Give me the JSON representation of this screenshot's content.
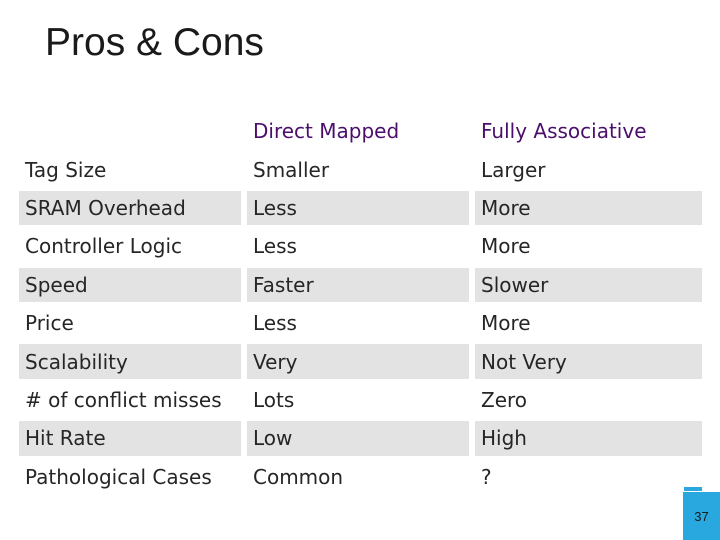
{
  "title": "Pros & Cons",
  "table": {
    "headers": [
      "",
      "Direct Mapped",
      "Fully Associative"
    ],
    "rows": [
      [
        "Tag Size",
        "Smaller",
        "Larger"
      ],
      [
        "SRAM Overhead",
        "Less",
        "More"
      ],
      [
        "Controller Logic",
        "Less",
        "More"
      ],
      [
        "Speed",
        "Faster",
        "Slower"
      ],
      [
        "Price",
        "Less",
        "More"
      ],
      [
        "Scalability",
        "Very",
        "Not Very"
      ],
      [
        "# of conflict misses",
        "Lots",
        "Zero"
      ],
      [
        "Hit Rate",
        "Low",
        "High"
      ],
      [
        "Pathological Cases",
        "Common",
        "?"
      ]
    ]
  },
  "page_number": "37",
  "colors": {
    "header_text": "#4b0f6b",
    "row_shade": "#e3e3e3",
    "accent": "#29a8e0"
  }
}
